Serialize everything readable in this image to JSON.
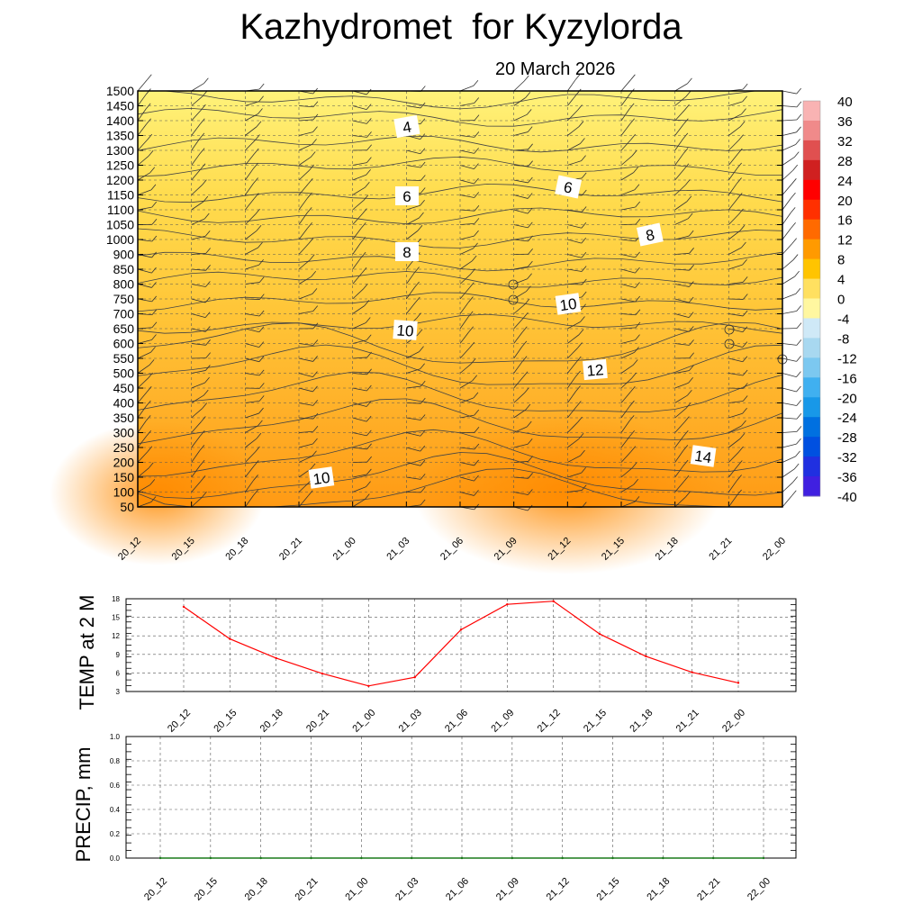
{
  "header": {
    "title": "Kazhydromet  for Kyzylorda",
    "date": "20 March 2026"
  },
  "time_labels": [
    "20_12",
    "20_15",
    "20_18",
    "20_21",
    "21_00",
    "21_03",
    "21_06",
    "21_09",
    "21_12",
    "21_15",
    "21_18",
    "21_21",
    "22_00"
  ],
  "chart_data": [
    {
      "type": "heatmap",
      "ylim": [
        50,
        1500
      ],
      "y_ticks": [
        50,
        100,
        150,
        200,
        250,
        300,
        350,
        400,
        450,
        500,
        550,
        600,
        650,
        700,
        750,
        800,
        850,
        900,
        1000,
        1050,
        1100,
        1150,
        1200,
        1250,
        1300,
        1350,
        1400,
        1450,
        1500
      ],
      "colorbar": {
        "labels": [
          "40",
          "36",
          "32",
          "28",
          "24",
          "20",
          "16",
          "12",
          "8",
          "4",
          "0",
          "-4",
          "-8",
          "-12",
          "-16",
          "-20",
          "-24",
          "-28",
          "-32",
          "-36",
          "-40"
        ],
        "colors": [
          "#f9b3b3",
          "#f08a8a",
          "#e05050",
          "#d02020",
          "#ff0000",
          "#ff3000",
          "#ff6a00",
          "#ff9a00",
          "#ffc400",
          "#ffe060",
          "#fff7a0",
          "#cfe9f7",
          "#a8d8f0",
          "#7cc8f0",
          "#40b0f0",
          "#1898e8",
          "#0070e0",
          "#0050e0",
          "#2030e0",
          "#4020e0",
          "#8040e0"
        ]
      },
      "contour_labels": [
        "4",
        "6",
        "6",
        "8",
        "8",
        "10",
        "10",
        "12",
        "14",
        "10"
      ],
      "wind_barbs": "grid of barbs at each time step and level"
    },
    {
      "type": "line",
      "ylabel": "TEMP at 2 M",
      "ylim": [
        3,
        18
      ],
      "y_ticks": [
        "3",
        "6",
        "9",
        "12",
        "15",
        "18"
      ],
      "x": [
        "20_12",
        "20_15",
        "20_18",
        "20_21",
        "21_00",
        "21_03",
        "21_06",
        "21_09",
        "21_12",
        "21_15",
        "21_18",
        "21_21",
        "22_00"
      ],
      "series": [
        {
          "values": [
            16.7,
            11.5,
            8.4,
            5.9,
            3.9,
            5.3,
            13.0,
            17.1,
            17.6,
            12.3,
            8.7,
            6.1,
            4.4
          ],
          "color": "#ff0000"
        }
      ]
    },
    {
      "type": "line",
      "ylabel": "PRECIP, mm",
      "ylim": [
        0.0,
        1.0
      ],
      "y_ticks": [
        "0.0",
        "0.2",
        "0.4",
        "0.6",
        "0.8",
        "1.0"
      ],
      "x": [
        "20_12",
        "20_15",
        "20_18",
        "20_21",
        "21_00",
        "21_03",
        "21_06",
        "21_09",
        "21_12",
        "21_15",
        "21_18",
        "21_21",
        "22_00"
      ],
      "series": [
        {
          "values": [
            0,
            0,
            0,
            0,
            0,
            0,
            0,
            0,
            0,
            0,
            0,
            0,
            0
          ],
          "color": "#1a7a1a"
        }
      ]
    }
  ]
}
